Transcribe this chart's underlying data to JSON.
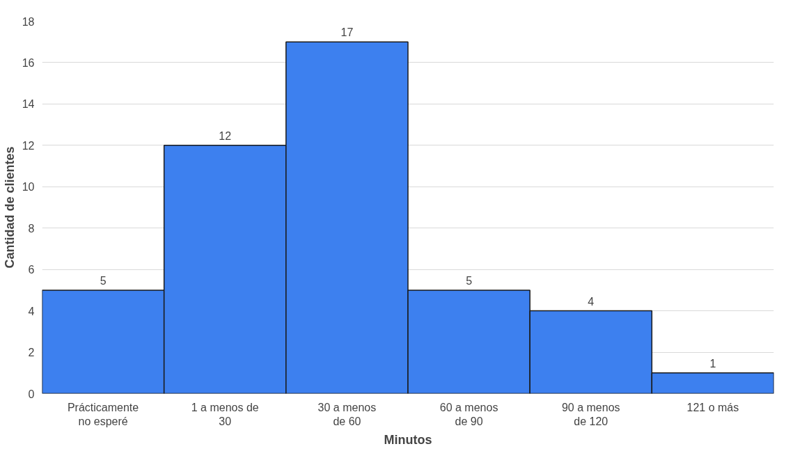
{
  "chart_data": {
    "type": "bar",
    "xlabel": "Minutos",
    "ylabel": "Cantidad de clientes",
    "categories": [
      "Prácticamente\nno esperé",
      "1 a menos de\n30",
      "30 a menos\nde 60",
      "60 a menos\nde 90",
      "90 a menos\nde 120",
      "121 o más"
    ],
    "values": [
      5,
      12,
      17,
      5,
      4,
      1
    ],
    "color": "#3d80ef",
    "ylim": [
      0,
      18
    ],
    "yticks": [
      0,
      2,
      4,
      6,
      8,
      10,
      12,
      14,
      16,
      18
    ],
    "grid": "y",
    "data_labels": true
  }
}
